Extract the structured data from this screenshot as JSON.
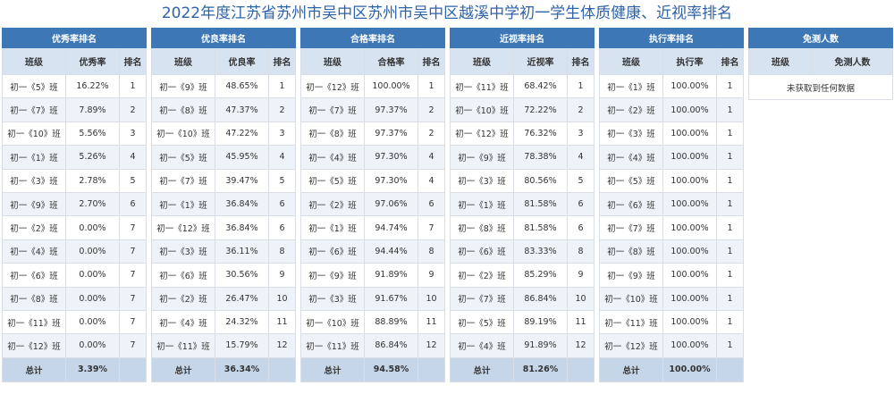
{
  "page": {
    "title": "2022年度江苏省苏州市吴中区苏州市吴中区越溪中学初一学生体质健康、近视率排名"
  },
  "panels": [
    {
      "title": "优秀率排名",
      "headers": [
        "班级",
        "优秀率",
        "排名"
      ],
      "rows": [
        [
          "初一《5》班",
          "16.22%",
          "1"
        ],
        [
          "初一《7》班",
          "7.89%",
          "2"
        ],
        [
          "初一《10》班",
          "5.56%",
          "3"
        ],
        [
          "初一《1》班",
          "5.26%",
          "4"
        ],
        [
          "初一《3》班",
          "2.78%",
          "5"
        ],
        [
          "初一《9》班",
          "2.70%",
          "6"
        ],
        [
          "初一《2》班",
          "0.00%",
          "7"
        ],
        [
          "初一《4》班",
          "0.00%",
          "7"
        ],
        [
          "初一《6》班",
          "0.00%",
          "7"
        ],
        [
          "初一《8》班",
          "0.00%",
          "7"
        ],
        [
          "初一《11》班",
          "0.00%",
          "7"
        ],
        [
          "初一《12》班",
          "0.00%",
          "7"
        ]
      ],
      "total": [
        "总计",
        "3.39%",
        ""
      ]
    },
    {
      "title": "优良率排名",
      "headers": [
        "班级",
        "优良率",
        "排名"
      ],
      "rows": [
        [
          "初一《9》班",
          "48.65%",
          "1"
        ],
        [
          "初一《8》班",
          "47.37%",
          "2"
        ],
        [
          "初一《10》班",
          "47.22%",
          "3"
        ],
        [
          "初一《5》班",
          "45.95%",
          "4"
        ],
        [
          "初一《7》班",
          "39.47%",
          "5"
        ],
        [
          "初一《1》班",
          "36.84%",
          "6"
        ],
        [
          "初一《12》班",
          "36.84%",
          "6"
        ],
        [
          "初一《3》班",
          "36.11%",
          "8"
        ],
        [
          "初一《6》班",
          "30.56%",
          "9"
        ],
        [
          "初一《2》班",
          "26.47%",
          "10"
        ],
        [
          "初一《4》班",
          "24.32%",
          "11"
        ],
        [
          "初一《11》班",
          "15.79%",
          "12"
        ]
      ],
      "total": [
        "总计",
        "36.34%",
        ""
      ]
    },
    {
      "title": "合格率排名",
      "headers": [
        "班级",
        "合格率",
        "排名"
      ],
      "rows": [
        [
          "初一《12》班",
          "100.00%",
          "1"
        ],
        [
          "初一《7》班",
          "97.37%",
          "2"
        ],
        [
          "初一《8》班",
          "97.37%",
          "2"
        ],
        [
          "初一《4》班",
          "97.30%",
          "4"
        ],
        [
          "初一《5》班",
          "97.30%",
          "4"
        ],
        [
          "初一《2》班",
          "97.06%",
          "6"
        ],
        [
          "初一《1》班",
          "94.74%",
          "7"
        ],
        [
          "初一《6》班",
          "94.44%",
          "8"
        ],
        [
          "初一《9》班",
          "91.89%",
          "9"
        ],
        [
          "初一《3》班",
          "91.67%",
          "10"
        ],
        [
          "初一《10》班",
          "88.89%",
          "11"
        ],
        [
          "初一《11》班",
          "86.84%",
          "12"
        ]
      ],
      "total": [
        "总计",
        "94.58%",
        ""
      ]
    },
    {
      "title": "近视率排名",
      "headers": [
        "班级",
        "近视率",
        "排名"
      ],
      "rows": [
        [
          "初一《11》班",
          "68.42%",
          "1"
        ],
        [
          "初一《10》班",
          "72.22%",
          "2"
        ],
        [
          "初一《12》班",
          "76.32%",
          "3"
        ],
        [
          "初一《9》班",
          "78.38%",
          "4"
        ],
        [
          "初一《3》班",
          "80.56%",
          "5"
        ],
        [
          "初一《1》班",
          "81.58%",
          "6"
        ],
        [
          "初一《8》班",
          "81.58%",
          "6"
        ],
        [
          "初一《6》班",
          "83.33%",
          "8"
        ],
        [
          "初一《2》班",
          "85.29%",
          "9"
        ],
        [
          "初一《7》班",
          "86.84%",
          "10"
        ],
        [
          "初一《5》班",
          "89.19%",
          "11"
        ],
        [
          "初一《4》班",
          "91.89%",
          "12"
        ]
      ],
      "total": [
        "总计",
        "81.26%",
        ""
      ]
    },
    {
      "title": "执行率排名",
      "headers": [
        "班级",
        "执行率",
        "排名"
      ],
      "rows": [
        [
          "初一《1》班",
          "100.00%",
          "1"
        ],
        [
          "初一《2》班",
          "100.00%",
          "1"
        ],
        [
          "初一《3》班",
          "100.00%",
          "1"
        ],
        [
          "初一《4》班",
          "100.00%",
          "1"
        ],
        [
          "初一《5》班",
          "100.00%",
          "1"
        ],
        [
          "初一《6》班",
          "100.00%",
          "1"
        ],
        [
          "初一《7》班",
          "100.00%",
          "1"
        ],
        [
          "初一《8》班",
          "100.00%",
          "1"
        ],
        [
          "初一《9》班",
          "100.00%",
          "1"
        ],
        [
          "初一《10》班",
          "100.00%",
          "1"
        ],
        [
          "初一《11》班",
          "100.00%",
          "1"
        ],
        [
          "初一《12》班",
          "100.00%",
          "1"
        ]
      ],
      "total": [
        "总计",
        "100.00%",
        ""
      ]
    }
  ],
  "exempt": {
    "title": "免测人数",
    "headers": [
      "班级",
      "免测人数"
    ],
    "empty_message": "未获取到任何数据"
  }
}
